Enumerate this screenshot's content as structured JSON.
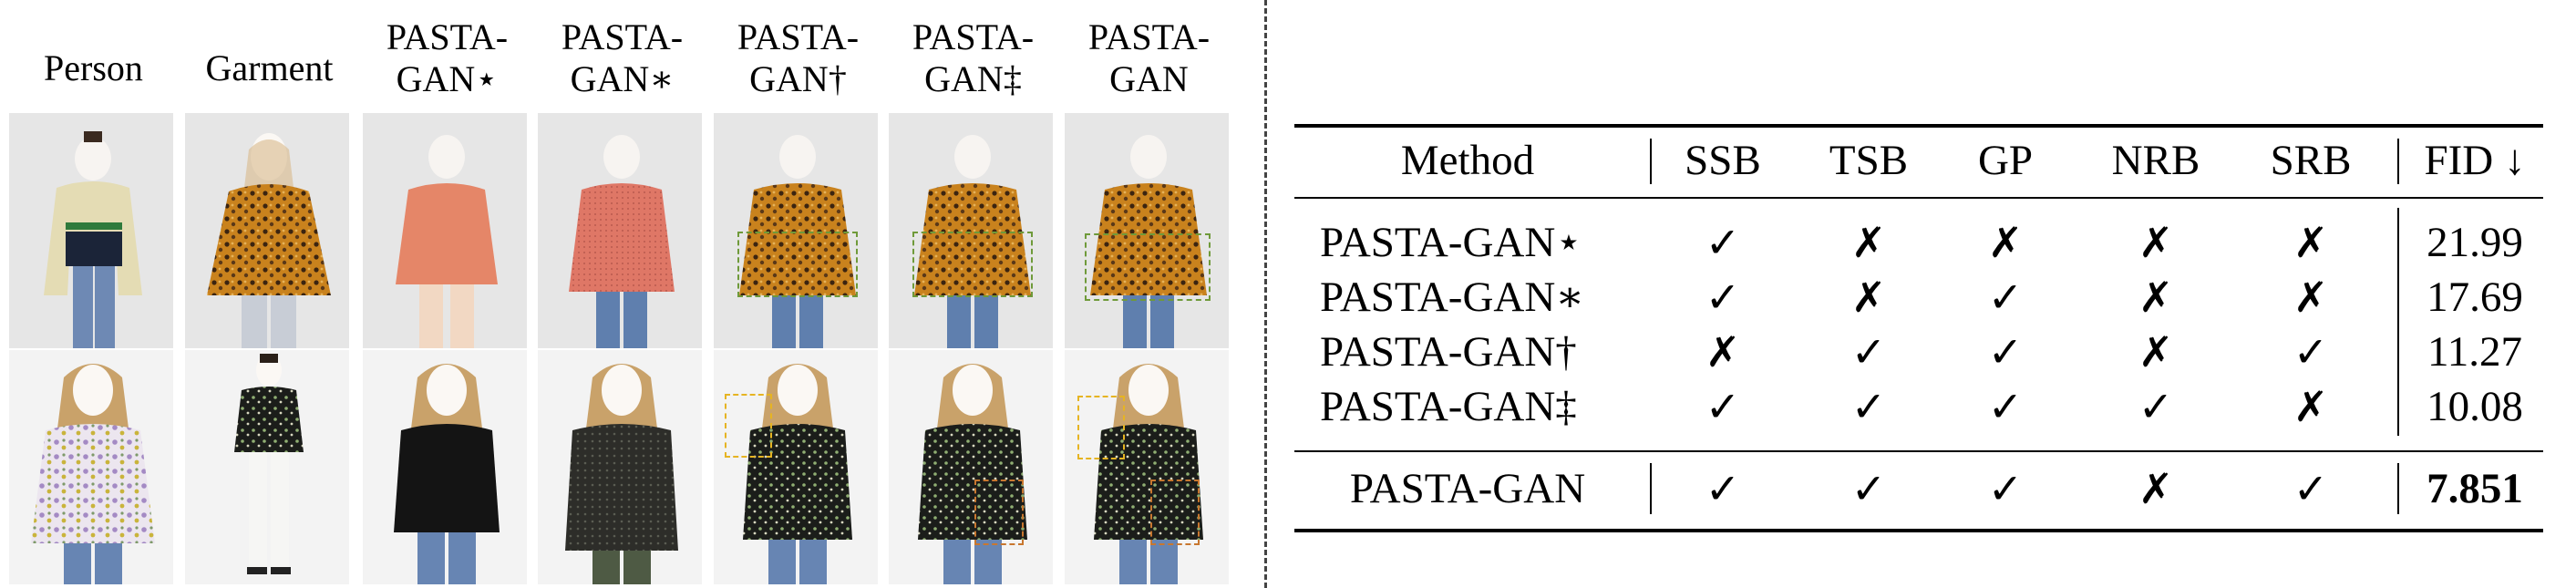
{
  "figure": {
    "columns": [
      "Person",
      "Garment",
      "PASTA-\nGAN⋆",
      "PASTA-\nGAN∗",
      "PASTA-\nGAN†",
      "PASTA-\nGAN‡",
      "PASTA-\nGAN"
    ],
    "column_lines": [
      [
        "Person"
      ],
      [
        "Garment"
      ],
      [
        "PASTA-",
        "GAN⋆"
      ],
      [
        "PASTA-",
        "GAN∗"
      ],
      [
        "PASTA-",
        "GAN†"
      ],
      [
        "PASTA-",
        "GAN‡"
      ],
      [
        "PASTA-",
        "GAN"
      ]
    ]
  },
  "table": {
    "headers": [
      "Method",
      "SSB",
      "TSB",
      "GP",
      "NRB",
      "SRB",
      "FID ↓"
    ],
    "rows": [
      {
        "method": "PASTA-GAN⋆",
        "ssb": "✓",
        "tsb": "✗",
        "gp": "✗",
        "nrb": "✗",
        "srb": "✗",
        "fid": "21.99"
      },
      {
        "method": "PASTA-GAN∗",
        "ssb": "✓",
        "tsb": "✗",
        "gp": "✓",
        "nrb": "✗",
        "srb": "✗",
        "fid": "17.69"
      },
      {
        "method": "PASTA-GAN†",
        "ssb": "✗",
        "tsb": "✓",
        "gp": "✓",
        "nrb": "✗",
        "srb": "✓",
        "fid": "11.27"
      },
      {
        "method": "PASTA-GAN‡",
        "ssb": "✓",
        "tsb": "✓",
        "gp": "✓",
        "nrb": "✓",
        "srb": "✗",
        "fid": "10.08"
      }
    ],
    "final_row": {
      "method": "PASTA-GAN",
      "ssb": "✓",
      "tsb": "✓",
      "gp": "✓",
      "nrb": "✗",
      "srb": "✓",
      "fid": "7.851"
    }
  },
  "colors": {
    "box_green": "#6f9a3a",
    "box_yellow": "#e6b422",
    "box_orange": "#c8772f"
  }
}
